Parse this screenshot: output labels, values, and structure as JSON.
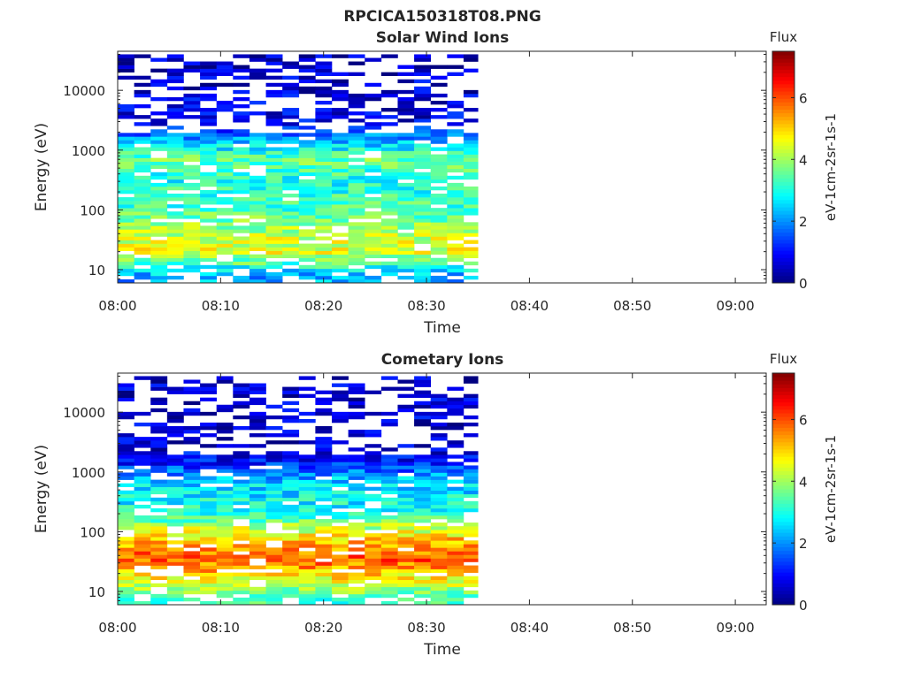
{
  "figure": {
    "title": "RPCICA150318T08.PNG",
    "colormap": [
      "#00007f",
      "#0000ff",
      "#007fff",
      "#00ffff",
      "#7fff7f",
      "#ffff00",
      "#ff7f00",
      "#ff0000",
      "#7f0000"
    ]
  },
  "chart_data": [
    {
      "type": "heatmap",
      "title": "Solar Wind Ions",
      "xlabel": "Time",
      "ylabel": "Energy (eV)",
      "x_tick_labels": [
        "08:00",
        "08:10",
        "08:20",
        "08:30",
        "08:40",
        "08:50",
        "09:00"
      ],
      "x_range": [
        "08:00",
        "09:03"
      ],
      "y_scale": "log",
      "y_tick_labels": [
        "10",
        "100",
        "1000",
        "10000"
      ],
      "y_range": [
        6,
        45000
      ],
      "colorbar": {
        "title": "Flux",
        "label": "eV-1cm-2sr-1s-1",
        "range": [
          0,
          7.5
        ],
        "tick_labels": [
          "0",
          "2",
          "4",
          "6"
        ]
      },
      "data_extent": [
        "08:00",
        "08:35"
      ],
      "typical_flux_profile": [
        {
          "energy_eV": 8,
          "flux": 2.2
        },
        {
          "energy_eV": 20,
          "flux": 4.5
        },
        {
          "energy_eV": 40,
          "flux": 4.2
        },
        {
          "energy_eV": 100,
          "flux": 3.3
        },
        {
          "energy_eV": 300,
          "flux": 3.0
        },
        {
          "energy_eV": 700,
          "flux": 3.6
        },
        {
          "energy_eV": 1500,
          "flux": 2.2
        },
        {
          "energy_eV": 3000,
          "flux": 0.8
        },
        {
          "energy_eV": 30000,
          "flux": 0.5
        }
      ]
    },
    {
      "type": "heatmap",
      "title": "Cometary Ions",
      "xlabel": "Time",
      "ylabel": "Energy (eV)",
      "x_tick_labels": [
        "08:00",
        "08:10",
        "08:20",
        "08:30",
        "08:40",
        "08:50",
        "09:00"
      ],
      "x_range": [
        "08:00",
        "09:03"
      ],
      "y_scale": "log",
      "y_tick_labels": [
        "10",
        "100",
        "1000",
        "10000"
      ],
      "y_range": [
        6,
        45000
      ],
      "colorbar": {
        "title": "Flux",
        "label": "eV-1cm-2sr-1s-1",
        "range": [
          0,
          7.5
        ],
        "tick_labels": [
          "0",
          "2",
          "4",
          "6"
        ]
      },
      "data_extent": [
        "08:00",
        "08:35"
      ],
      "typical_flux_profile": [
        {
          "energy_eV": 8,
          "flux": 3.3
        },
        {
          "energy_eV": 15,
          "flux": 4.5
        },
        {
          "energy_eV": 35,
          "flux": 6.0
        },
        {
          "energy_eV": 80,
          "flux": 5.0
        },
        {
          "energy_eV": 200,
          "flux": 3.0
        },
        {
          "energy_eV": 700,
          "flux": 2.5
        },
        {
          "energy_eV": 1500,
          "flux": 1.0
        },
        {
          "energy_eV": 3000,
          "flux": 0.6
        }
      ]
    }
  ]
}
